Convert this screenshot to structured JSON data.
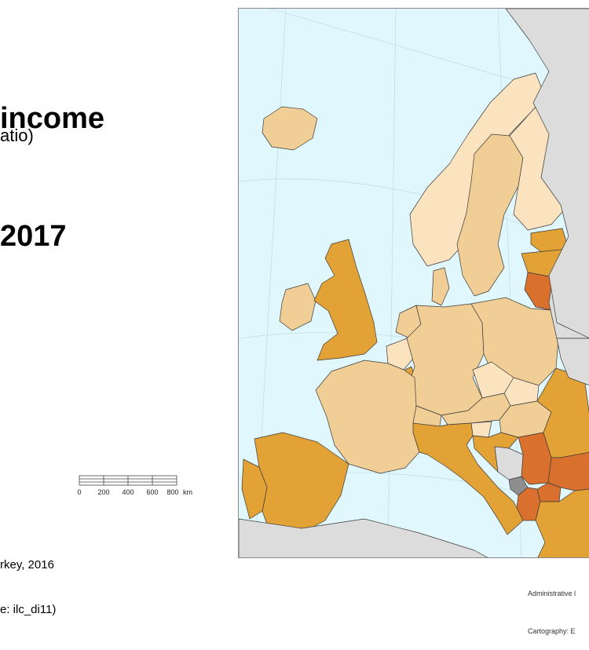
{
  "title_lines": [
    "income",
    "2017"
  ],
  "subtitle": "atio)",
  "scale": {
    "unit": "km",
    "ticks": [
      "0",
      "200",
      "400",
      "600",
      "800"
    ]
  },
  "notes": [
    "rkey, 2016",
    "e: ilc_di11)"
  ],
  "credits": [
    "Administrative l",
    "Cartography: E"
  ],
  "colors": {
    "sea": "#dff7fd",
    "non_eu_land": "#dcdcdc",
    "no_data": "#8e8e8e",
    "class_1": "#fbe3c0",
    "class_2": "#f0ce96",
    "class_3": "#e3a235",
    "class_4": "#d9702e"
  },
  "regions": [
    {
      "name": "Iceland",
      "class": "class_2"
    },
    {
      "name": "Ireland",
      "class": "class_2"
    },
    {
      "name": "United Kingdom",
      "class": "class_3"
    },
    {
      "name": "Norway",
      "class": "class_1"
    },
    {
      "name": "Sweden",
      "class": "class_2"
    },
    {
      "name": "Finland",
      "class": "class_1"
    },
    {
      "name": "Estonia",
      "class": "class_3"
    },
    {
      "name": "Latvia",
      "class": "class_3"
    },
    {
      "name": "Lithuania",
      "class": "class_4"
    },
    {
      "name": "Denmark",
      "class": "class_2"
    },
    {
      "name": "Netherlands",
      "class": "class_2"
    },
    {
      "name": "Belgium",
      "class": "class_1"
    },
    {
      "name": "Luxembourg",
      "class": "class_3"
    },
    {
      "name": "Germany",
      "class": "class_2"
    },
    {
      "name": "Poland",
      "class": "class_2"
    },
    {
      "name": "Czechia",
      "class": "class_1"
    },
    {
      "name": "Slovakia",
      "class": "class_1"
    },
    {
      "name": "Austria",
      "class": "class_2"
    },
    {
      "name": "Hungary",
      "class": "class_2"
    },
    {
      "name": "Slovenia",
      "class": "class_1"
    },
    {
      "name": "Croatia",
      "class": "class_3"
    },
    {
      "name": "Serbia",
      "class": "class_4"
    },
    {
      "name": "Montenegro",
      "class": "no_data"
    },
    {
      "name": "North Macedonia",
      "class": "class_4"
    },
    {
      "name": "Albania",
      "class": "class_4"
    },
    {
      "name": "Romania",
      "class": "class_3"
    },
    {
      "name": "Bulgaria",
      "class": "class_4"
    },
    {
      "name": "Greece",
      "class": "class_3"
    },
    {
      "name": "France",
      "class": "class_2"
    },
    {
      "name": "Switzerland",
      "class": "class_2"
    },
    {
      "name": "Italy",
      "class": "class_3"
    },
    {
      "name": "Spain",
      "class": "class_3"
    },
    {
      "name": "Portugal",
      "class": "class_3"
    },
    {
      "name": "Bosnia and Herzegovina",
      "class": "non_eu_land"
    },
    {
      "name": "Belarus",
      "class": "non_eu_land"
    },
    {
      "name": "Russia",
      "class": "non_eu_land"
    },
    {
      "name": "Ukraine",
      "class": "non_eu_land"
    },
    {
      "name": "North Africa",
      "class": "non_eu_land"
    }
  ]
}
